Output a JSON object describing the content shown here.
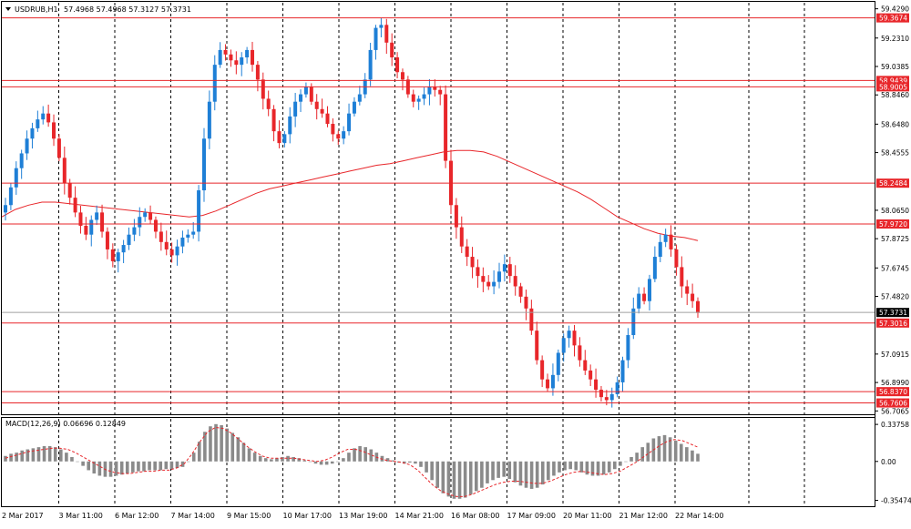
{
  "header": {
    "symbol_timeframe": "USDRUB,H1",
    "ohlc_text": "57.4968 57.4968 57.3127 57.3731"
  },
  "macd": {
    "label": "MACD(12,26,9) 0.06696 0.12849",
    "axis_labels": [
      "0.33758",
      "0.00",
      "-0.35474"
    ]
  },
  "price_axis_labels": [
    "59.4290",
    "59.2310",
    "59.0385",
    "58.8460",
    "58.6480",
    "58.4555",
    "58.0650",
    "57.8725",
    "57.6745",
    "57.4820",
    "57.0915",
    "56.8990",
    "56.7065"
  ],
  "x_labels": [
    "2 Mar 2017",
    "3 Mar 11:00",
    "6 Mar 12:00",
    "7 Mar 14:00",
    "9 Mar 15:00",
    "10 Mar 17:00",
    "13 Mar 19:00",
    "14 Mar 21:00",
    "16 Mar 08:00",
    "17 Mar 09:00",
    "20 Mar 11:00",
    "21 Mar 12:00",
    "22 Mar 14:00"
  ],
  "colors": {
    "bull": "#1e7fd6",
    "bear": "#e8262a",
    "level_line": "#e8262a",
    "ma_line": "#e8262a",
    "current_line": "#a0a0a0",
    "macd_hist": "#8a8a8a",
    "macd_signal": "#e8262a",
    "grid": "#000000"
  },
  "chart_data": [
    {
      "type": "candlestick",
      "title": "USDRUB,H1",
      "ylim": [
        56.69,
        59.47
      ],
      "yticks": [
        59.429,
        59.231,
        59.0385,
        58.846,
        58.648,
        58.4555,
        58.065,
        57.8725,
        57.6745,
        57.482,
        57.0915,
        56.899,
        56.7065
      ],
      "x_tick_labels": [
        "2 Mar 2017",
        "3 Mar 11:00",
        "6 Mar 12:00",
        "7 Mar 14:00",
        "9 Mar 15:00",
        "10 Mar 17:00",
        "13 Mar 19:00",
        "14 Mar 21:00",
        "16 Mar 08:00",
        "17 Mar 09:00",
        "20 Mar 11:00",
        "21 Mar 12:00",
        "22 Mar 14:00"
      ],
      "levels": [
        {
          "price": 59.3674,
          "label": "59.3674"
        },
        {
          "price": 58.9439,
          "label": "58.9439"
        },
        {
          "price": 58.9005,
          "label": "58.9005"
        },
        {
          "price": 58.2484,
          "label": "58.2484"
        },
        {
          "price": 57.972,
          "label": "57.9720"
        },
        {
          "price": 57.3016,
          "label": "57.3016"
        },
        {
          "price": 56.837,
          "label": "56.8370"
        },
        {
          "price": 56.7606,
          "label": "56.7606"
        }
      ],
      "current_price": {
        "price": 57.3731,
        "label": "57.3731"
      },
      "grid": {
        "vertical_dashed": true
      },
      "key_closes": [
        58.1,
        58.22,
        58.35,
        58.45,
        58.55,
        58.62,
        58.68,
        58.72,
        58.66,
        58.55,
        58.42,
        58.25,
        58.15,
        58.05,
        57.96,
        57.9,
        58.0,
        58.05,
        57.92,
        57.8,
        57.72,
        57.78,
        57.83,
        57.9,
        57.95,
        58.02,
        58.05,
        58.0,
        57.92,
        57.85,
        57.8,
        57.76,
        57.82,
        57.88,
        57.9,
        57.92,
        58.2,
        58.55,
        58.8,
        59.05,
        59.15,
        59.12,
        59.08,
        59.05,
        59.1,
        59.15,
        59.05,
        58.95,
        58.82,
        58.75,
        58.6,
        58.52,
        58.58,
        58.7,
        58.8,
        58.85,
        58.9,
        58.8,
        58.75,
        58.72,
        58.65,
        58.58,
        58.55,
        58.6,
        58.72,
        58.8,
        58.85,
        58.95,
        59.15,
        59.3,
        59.32,
        59.2,
        59.1,
        59.0,
        58.95,
        58.85,
        58.8,
        58.82,
        58.85,
        58.9,
        58.88,
        58.85,
        58.4,
        58.1,
        57.95,
        57.82,
        57.75,
        57.68,
        57.62,
        57.58,
        57.55,
        57.58,
        57.65,
        57.7,
        57.62,
        57.55,
        57.48,
        57.4,
        57.25,
        57.05,
        56.92,
        56.86,
        56.95,
        57.1,
        57.2,
        57.25,
        57.15,
        57.05,
        56.98,
        56.92,
        56.85,
        56.8,
        56.78,
        56.82,
        56.9,
        57.05,
        57.22,
        57.4,
        57.5,
        57.45,
        57.6,
        57.75,
        57.85,
        57.9,
        57.8,
        57.68,
        57.55,
        57.5,
        57.45,
        57.37
      ],
      "ma_line_values": [
        58.02,
        58.07,
        58.1,
        58.12,
        58.12,
        58.11,
        58.1,
        58.09,
        58.08,
        58.07,
        58.06,
        58.05,
        58.04,
        58.03,
        58.02,
        58.03,
        58.06,
        58.1,
        58.14,
        58.18,
        58.21,
        58.23,
        58.25,
        58.27,
        58.29,
        58.31,
        58.33,
        58.35,
        58.37,
        58.38,
        58.4,
        58.42,
        58.44,
        58.46,
        58.47,
        58.47,
        58.46,
        58.43,
        58.39,
        58.35,
        58.31,
        58.27,
        58.23,
        58.19,
        58.14,
        58.08,
        58.02,
        57.98,
        57.94,
        57.91,
        57.89,
        57.88,
        57.86
      ]
    },
    {
      "type": "bar",
      "title": "MACD(12,26,9) 0.06696 0.12849",
      "ylim": [
        -0.4,
        0.38
      ],
      "yticks": [
        0.33758,
        0.0,
        -0.35474
      ],
      "hist_values": [
        0.05,
        0.07,
        0.08,
        0.1,
        0.11,
        0.12,
        0.13,
        0.14,
        0.14,
        0.13,
        0.11,
        0.08,
        0.04,
        0.0,
        -0.04,
        -0.08,
        -0.11,
        -0.13,
        -0.14,
        -0.14,
        -0.13,
        -0.12,
        -0.11,
        -0.1,
        -0.09,
        -0.09,
        -0.08,
        -0.08,
        -0.08,
        -0.07,
        -0.07,
        -0.06,
        -0.05,
        0.0,
        0.08,
        0.18,
        0.27,
        0.32,
        0.34,
        0.33,
        0.3,
        0.26,
        0.22,
        0.17,
        0.12,
        0.08,
        0.05,
        0.03,
        0.02,
        0.03,
        0.04,
        0.05,
        0.04,
        0.03,
        0.01,
        0.0,
        -0.02,
        -0.03,
        -0.03,
        -0.02,
        0.0,
        0.03,
        0.08,
        0.12,
        0.14,
        0.13,
        0.11,
        0.08,
        0.05,
        0.03,
        0.01,
        -0.01,
        -0.02,
        -0.01,
        -0.02,
        -0.05,
        -0.1,
        -0.17,
        -0.24,
        -0.29,
        -0.32,
        -0.34,
        -0.34,
        -0.33,
        -0.3,
        -0.27,
        -0.24,
        -0.2,
        -0.17,
        -0.15,
        -0.14,
        -0.16,
        -0.19,
        -0.22,
        -0.24,
        -0.25,
        -0.24,
        -0.21,
        -0.17,
        -0.13,
        -0.1,
        -0.08,
        -0.07,
        -0.08,
        -0.1,
        -0.12,
        -0.13,
        -0.13,
        -0.12,
        -0.1,
        -0.07,
        -0.04,
        0.0,
        0.04,
        0.08,
        0.13,
        0.17,
        0.21,
        0.23,
        0.24,
        0.22,
        0.19,
        0.16,
        0.13,
        0.1,
        0.07
      ],
      "signal_values": [
        0.03,
        0.05,
        0.07,
        0.09,
        0.1,
        0.11,
        0.12,
        0.12,
        0.11,
        0.08,
        0.04,
        0.0,
        -0.04,
        -0.08,
        -0.1,
        -0.11,
        -0.11,
        -0.1,
        -0.09,
        -0.09,
        -0.08,
        -0.08,
        -0.06,
        -0.02,
        0.07,
        0.18,
        0.27,
        0.31,
        0.3,
        0.26,
        0.2,
        0.14,
        0.09,
        0.05,
        0.03,
        0.03,
        0.03,
        0.03,
        0.02,
        0.01,
        0.0,
        0.01,
        0.04,
        0.08,
        0.11,
        0.11,
        0.09,
        0.06,
        0.03,
        0.01,
        0.0,
        -0.01,
        -0.03,
        -0.08,
        -0.15,
        -0.22,
        -0.27,
        -0.3,
        -0.32,
        -0.32,
        -0.3,
        -0.27,
        -0.24,
        -0.21,
        -0.19,
        -0.18,
        -0.18,
        -0.19,
        -0.2,
        -0.2,
        -0.18,
        -0.15,
        -0.12,
        -0.1,
        -0.09,
        -0.1,
        -0.11,
        -0.12,
        -0.11,
        -0.09,
        -0.05,
        -0.01,
        0.04,
        0.09,
        0.14,
        0.18,
        0.2,
        0.19,
        0.16,
        0.13
      ]
    }
  ]
}
